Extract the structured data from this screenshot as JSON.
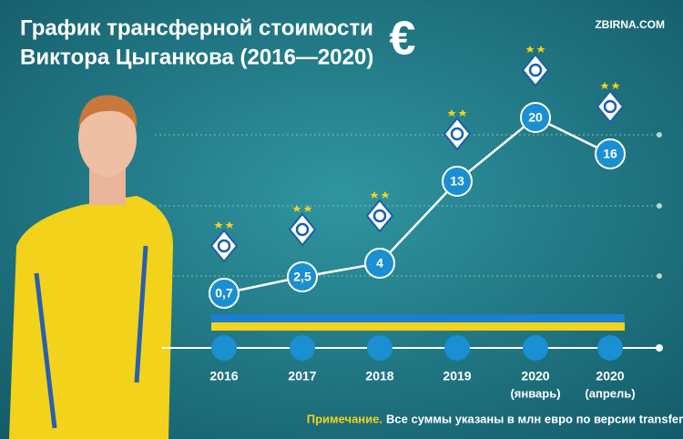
{
  "chart_data": {
    "type": "line",
    "title": [
      "График трансферной стоимости",
      "Виктора Цыганкова (2016—2020)"
    ],
    "currency_symbol": "€",
    "watermark": "ZBIRNA.COM",
    "categories": [
      "2016",
      "2017",
      "2018",
      "2019",
      "2020",
      "2020"
    ],
    "category_notes": [
      null,
      null,
      null,
      null,
      "(январь)",
      "(апрель)"
    ],
    "values": [
      0.7,
      2.5,
      4,
      13,
      20,
      16
    ],
    "value_labels": [
      "0,7",
      "2,5",
      "4",
      "13",
      "20",
      "16"
    ],
    "color": "#ffffff",
    "marker_color": "#1a8fd1",
    "note_label": "Примечание.",
    "note": "Все суммы указаны в млн евро по версии transfermarkt.de."
  }
}
